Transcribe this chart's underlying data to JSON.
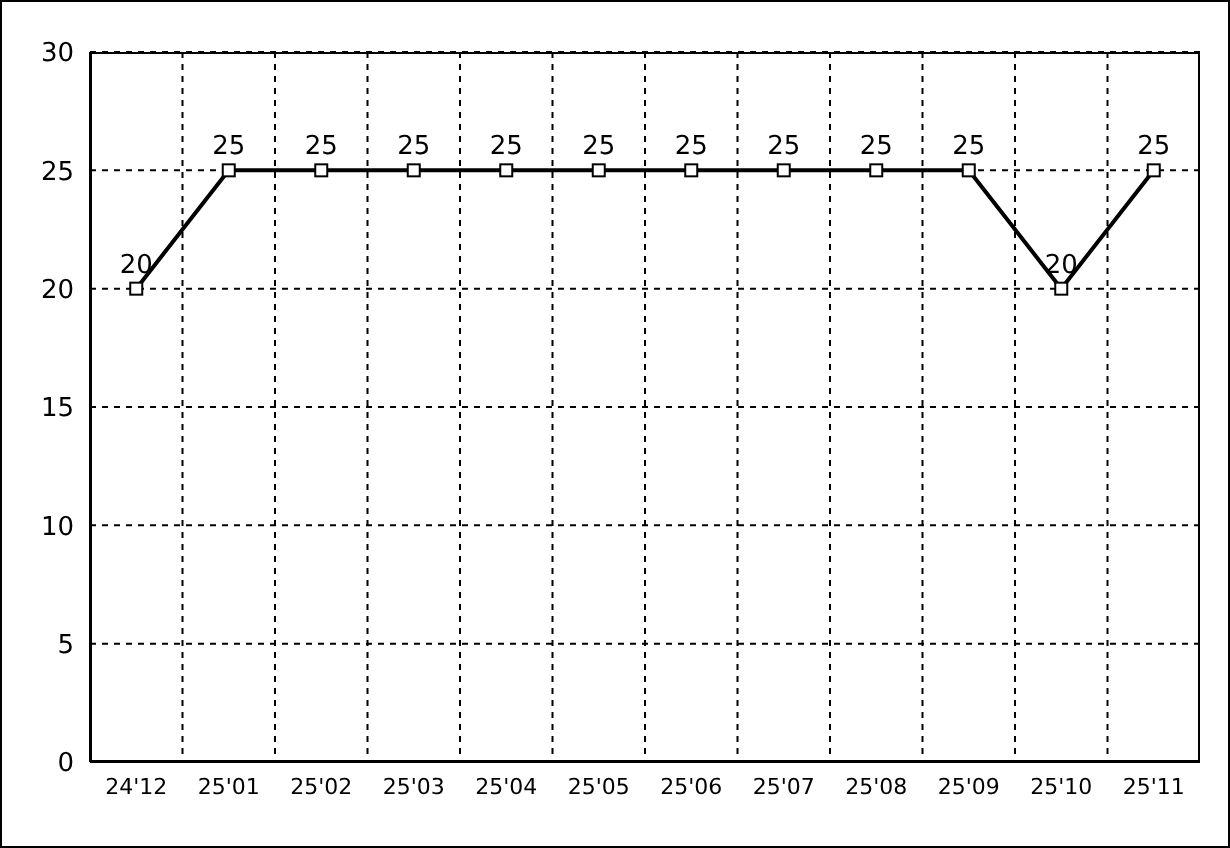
{
  "chart_data": {
    "type": "line",
    "categories": [
      "24'12",
      "25'01",
      "25'02",
      "25'03",
      "25'04",
      "25'05",
      "25'06",
      "25'07",
      "25'08",
      "25'09",
      "25'10",
      "25'11"
    ],
    "series": [
      {
        "color": "#000000",
        "values": [
          20,
          25,
          25,
          25,
          25,
          25,
          25,
          25,
          25,
          25,
          20,
          25
        ]
      }
    ],
    "ylim": [
      0,
      30
    ],
    "yticks": [
      0,
      5,
      10,
      15,
      20,
      25,
      30
    ],
    "grid": true,
    "marker": "square",
    "line_style": "solid",
    "data_labels": true
  }
}
